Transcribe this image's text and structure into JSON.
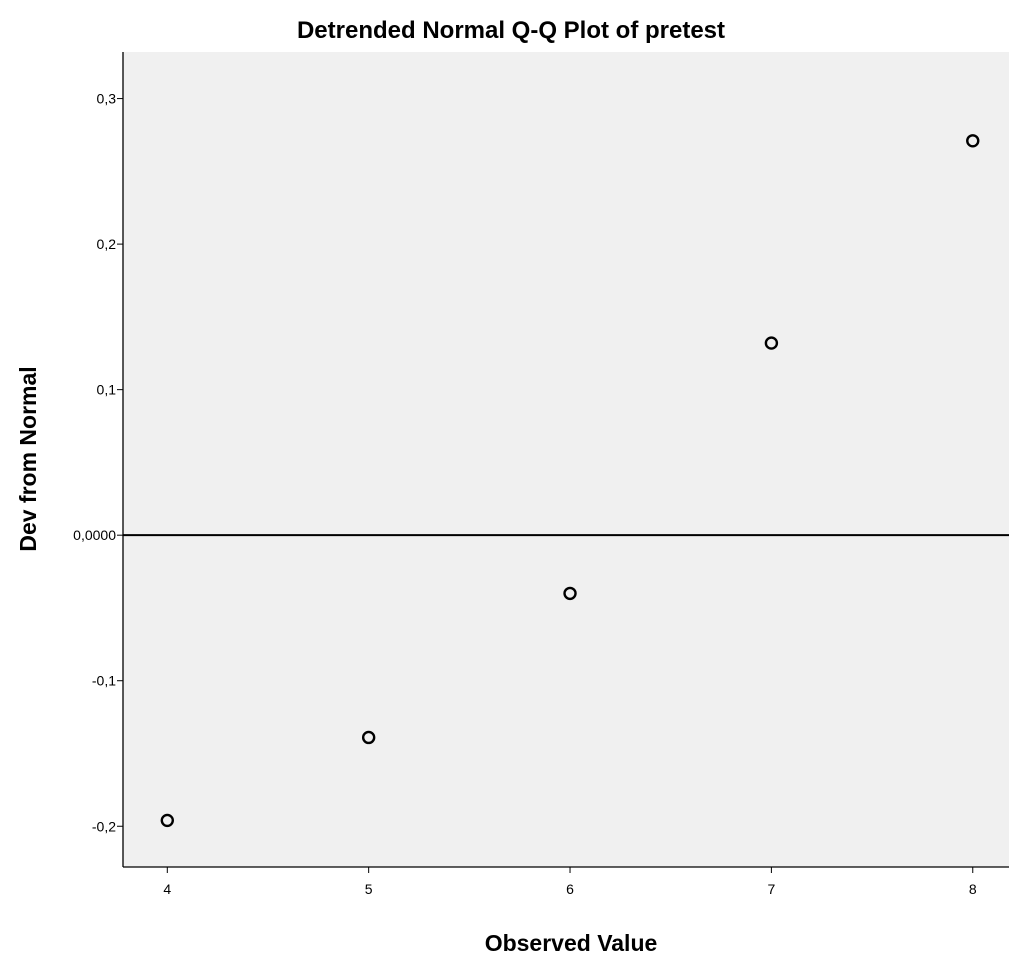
{
  "chart_data": {
    "type": "scatter",
    "title": "Detrended Normal Q-Q Plot of pretest",
    "xlabel": "Observed Value",
    "ylabel": "Dev from Normal",
    "xlim": [
      3.78,
      8.18
    ],
    "ylim": [
      -0.228,
      0.332
    ],
    "x_ticks": [
      4,
      5,
      6,
      7,
      8
    ],
    "x_tick_labels": [
      "4",
      "5",
      "6",
      "7",
      "8"
    ],
    "y_ticks": [
      -0.2,
      -0.1,
      0,
      0.1,
      0.2,
      0.3
    ],
    "y_tick_labels": [
      "-0,2",
      "-0,1",
      "0,0000",
      "0,1",
      "0,2",
      "0,3"
    ],
    "reference_line_y": 0,
    "grid": false,
    "points": [
      {
        "x": 4,
        "y": -0.196
      },
      {
        "x": 5,
        "y": -0.139
      },
      {
        "x": 6,
        "y": -0.04
      },
      {
        "x": 7,
        "y": 0.132
      },
      {
        "x": 8,
        "y": 0.271
      }
    ],
    "colors": {
      "plot_background": "#f0f0f0",
      "axis": "#000000",
      "marker": "#000000"
    }
  }
}
